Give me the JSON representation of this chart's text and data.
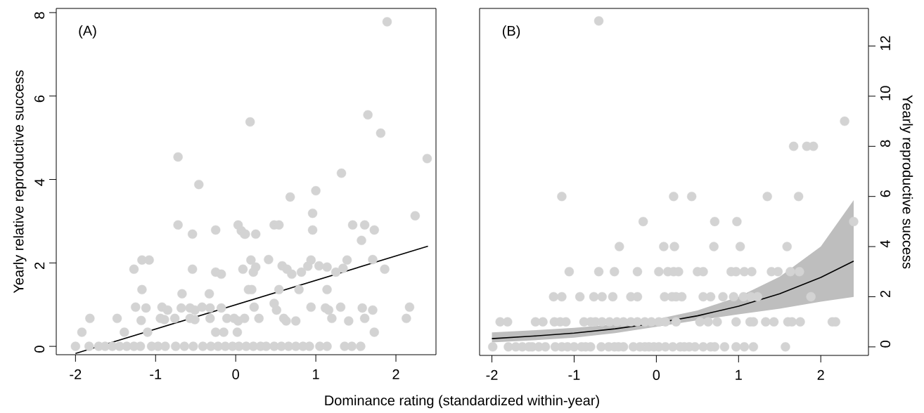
{
  "chart_data": [
    {
      "type": "scatter",
      "xlabel": "Dominance rating (standardized within-year)",
      "ylabel": "Yearly relative reproductive success",
      "annotations": [
        "(A)"
      ],
      "xlim": [
        -2.24,
        2.5
      ],
      "xticks": [
        -2,
        -1,
        0,
        1,
        2
      ],
      "ylim": [
        -0.2,
        8.1
      ],
      "yticks": [
        0,
        2,
        4,
        6,
        8
      ],
      "series": [
        {
          "marker": "circle",
          "color": "#d3d3d3",
          "x": [
            -2.0,
            -1.83,
            -1.71,
            -1.63,
            -1.54,
            -1.45,
            -1.36,
            -1.27,
            -1.19,
            -1.05,
            -0.97,
            -0.88,
            -0.75,
            -0.64,
            -0.53,
            -0.41,
            -0.31,
            -0.22,
            -0.13,
            -0.04,
            0.04,
            0.13,
            0.22,
            0.31,
            0.38,
            0.48,
            0.57,
            0.66,
            0.75,
            0.84,
            0.92,
            1.05,
            1.14,
            1.36,
            1.45,
            1.56,
            -1.92,
            -1.82,
            -1.48,
            -1.39,
            -1.27,
            -1.17,
            -1.08,
            -1.17,
            -1.25,
            -1.12,
            -1.18,
            -1.1,
            -0.92,
            -0.85,
            -0.94,
            -0.89,
            -0.76,
            -0.72,
            -0.46,
            -0.72,
            -0.54,
            -0.25,
            0.03,
            0.07,
            0.11,
            -0.54,
            -0.25,
            -0.18,
            0.09,
            -0.67,
            -0.33,
            -0.68,
            -0.57,
            -0.51,
            -0.42,
            -0.32,
            -0.18,
            -0.57,
            -0.51,
            -0.32,
            -0.11,
            -0.02,
            0.03,
            -0.25,
            -0.15,
            0.02,
            1.89,
            0.18,
            1.65,
            1.81,
            1.32,
            1.0,
            0.68,
            0.96,
            0.96,
            0.12,
            0.25,
            0.48,
            0.54,
            1.46,
            1.61,
            1.73,
            1.57,
            2.24,
            0.19,
            0.41,
            0.25,
            0.22,
            0.58,
            0.64,
            0.7,
            0.82,
            0.94,
            0.9,
            1.04,
            1.14,
            1.25,
            1.34,
            1.39,
            1.71,
            1.86,
            0.16,
            0.2,
            0.54,
            0.79,
            1.14,
            0.23,
            0.48,
            0.51,
            0.94,
            1.12,
            1.16,
            1.31,
            1.58,
            1.71,
            2.17,
            0.11,
            0.29,
            0.6,
            0.63,
            0.75,
            1.2,
            1.41,
            1.61,
            2.13,
            1.73,
            2.39
          ],
          "values": [
            0,
            0,
            0,
            0,
            0,
            0,
            0,
            0,
            0,
            0,
            0,
            0,
            0,
            0,
            0,
            0,
            0,
            0,
            0,
            0,
            0,
            0,
            0,
            0,
            0,
            0,
            0,
            0,
            0,
            0,
            0,
            0,
            0,
            0,
            0,
            0,
            0.34,
            0.67,
            0.67,
            0.34,
            1.85,
            2.07,
            2.07,
            1.36,
            0.94,
            0.92,
            0.62,
            0.34,
            0.94,
            0.87,
            0.67,
            0.64,
            0.67,
            4.54,
            3.88,
            2.91,
            2.69,
            2.79,
            2.91,
            2.77,
            2.69,
            1.85,
            1.78,
            1.73,
            1.85,
            1.26,
            1.26,
            0.92,
            0.92,
            0.87,
            0.94,
            0.92,
            0.92,
            0.67,
            0.64,
            0.67,
            0.67,
            0.67,
            0.61,
            0.34,
            0.34,
            0.34,
            7.78,
            5.38,
            5.55,
            5.11,
            4.15,
            3.73,
            3.58,
            3.19,
            2.79,
            2.69,
            2.69,
            2.91,
            2.91,
            2.91,
            2.91,
            2.79,
            2.54,
            3.13,
            2.07,
            2.08,
            1.9,
            1.78,
            1.93,
            1.85,
            1.73,
            1.78,
            2.07,
            1.92,
            1.93,
            1.9,
            1.78,
            1.87,
            2.07,
            2.08,
            1.85,
            1.36,
            1.36,
            1.36,
            1.36,
            1.36,
            0.94,
            1.03,
            0.87,
            0.94,
            0.92,
            0.87,
            0.94,
            0.92,
            0.87,
            0.94,
            0.67,
            0.67,
            0.67,
            0.61,
            0.61,
            0.67,
            0.61,
            0.67,
            0.67,
            0.34,
            4.5
          ]
        },
        {
          "type": "line",
          "marker": "none",
          "color": "#000000",
          "x": [
            -2,
            2.4
          ],
          "values": [
            -0.17,
            2.4
          ]
        }
      ]
    },
    {
      "type": "scatter",
      "y2label": "Yearly reproductive success",
      "annotations": [
        "(B)"
      ],
      "xlim": [
        -2.15,
        2.58
      ],
      "xticks": [
        -2,
        -1,
        0,
        1,
        2
      ],
      "y2lim": [
        -0.34,
        13.5
      ],
      "y2ticks": [
        0,
        2,
        4,
        6,
        8,
        10,
        12
      ],
      "series": [
        {
          "marker": "circle",
          "axis": "y2",
          "color": "#d3d3d3",
          "x": [
            -1.99,
            -1.8,
            -1.71,
            -1.63,
            -1.55,
            -1.51,
            -1.43,
            -1.35,
            -1.23,
            -1.15,
            -1.08,
            -1.0,
            -0.91,
            -0.86,
            -0.8,
            -0.67,
            -0.58,
            -0.51,
            -0.46,
            -0.4,
            -0.28,
            -0.2,
            -0.14,
            -0.09,
            -0.03,
            0.03,
            0.11,
            0.2,
            0.29,
            0.34,
            0.4,
            0.47,
            0.57,
            0.66,
            0.71,
            0.83,
            0.97,
            1.07,
            1.18,
            1.57,
            -1.9,
            -1.81,
            -1.47,
            -1.38,
            -1.24,
            -1.17,
            -1.1,
            -0.88,
            -0.8,
            -0.74,
            -0.66,
            -0.57,
            -0.48,
            -0.4,
            -0.31,
            -0.23,
            -0.14,
            -0.06,
            0.03,
            0.11,
            0.24,
            0.53,
            0.63,
            0.74,
            0.97,
            1.14,
            1.18,
            1.33,
            1.43,
            1.6,
            1.65,
            1.75,
            2.14,
            2.18,
            -1.25,
            -1.15,
            -0.93,
            -0.76,
            -0.66,
            -0.53,
            -0.31,
            -0.23,
            0.1,
            0.19,
            0.24,
            0.31,
            0.57,
            0.66,
            0.81,
            0.94,
            1.06,
            1.15,
            1.23,
            1.88,
            -1.06,
            -0.7,
            -0.51,
            -0.23,
            0.03,
            0.14,
            0.21,
            0.27,
            0.5,
            0.57,
            0.91,
            0.97,
            1.07,
            1.16,
            1.4,
            1.48,
            1.63,
            1.74,
            -0.45,
            0.09,
            0.22,
            0.7,
            1.02,
            1.59,
            -0.16,
            0.71,
            0.98,
            2.4,
            -1.15,
            0.21,
            0.43,
            1.35,
            1.73,
            1.67,
            1.83,
            1.91,
            2.29,
            -0.7
          ],
          "values": [
            0,
            0,
            0,
            0,
            0,
            0,
            0,
            0,
            0,
            0,
            0,
            0,
            0,
            0,
            0,
            0,
            0,
            0,
            0,
            0,
            0,
            0,
            0,
            0,
            0,
            0,
            0,
            0,
            0,
            0,
            0,
            0,
            0,
            0,
            0,
            0,
            0,
            0,
            0,
            0,
            1,
            1,
            1,
            1,
            1,
            1,
            1,
            1,
            1,
            1,
            1,
            1,
            1,
            1,
            1,
            1,
            1,
            1,
            1,
            1,
            1,
            1,
            1,
            1,
            1,
            1,
            1,
            1,
            1,
            1,
            1,
            1,
            1,
            1,
            2,
            2,
            2,
            2,
            2,
            2,
            2,
            2,
            2,
            2,
            2,
            2,
            2,
            2,
            2,
            2,
            2,
            2,
            2,
            2,
            3,
            3,
            3,
            3,
            3,
            3,
            3,
            3,
            3,
            3,
            3,
            3,
            3,
            3,
            3,
            3,
            3,
            3,
            4,
            4,
            4,
            4,
            4,
            4,
            5,
            5,
            5,
            5,
            6,
            6,
            6,
            6,
            6,
            8,
            8,
            8,
            9,
            13
          ]
        },
        {
          "type": "line",
          "marker": "none",
          "axis": "y2",
          "color": "#000000",
          "x": [
            -2,
            -1.5,
            -1,
            -0.5,
            0,
            0.5,
            1,
            1.5,
            2,
            2.4
          ],
          "values": [
            0.33,
            0.43,
            0.55,
            0.72,
            0.95,
            1.24,
            1.62,
            2.12,
            2.77,
            3.42
          ],
          "lower": [
            0.18,
            0.26,
            0.37,
            0.55,
            0.8,
            1.06,
            1.3,
            1.52,
            1.8,
            1.99
          ],
          "upper": [
            0.58,
            0.66,
            0.76,
            0.9,
            1.1,
            1.45,
            2.0,
            2.8,
            4.0,
            5.85
          ]
        }
      ]
    }
  ]
}
